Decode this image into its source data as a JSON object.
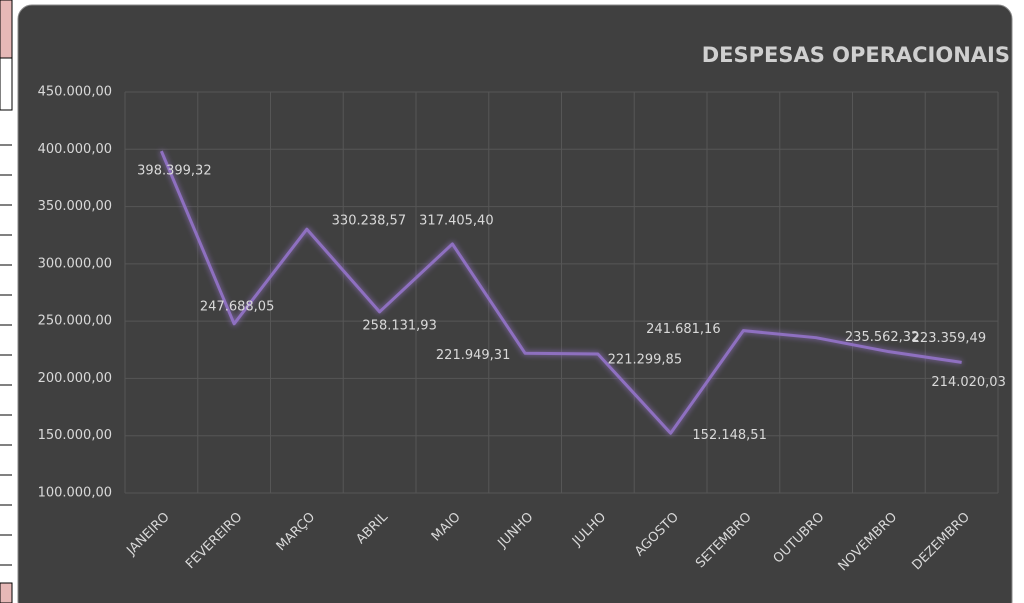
{
  "chart_data": {
    "type": "line",
    "title": "DESPESAS OPERACIONAIS",
    "categories": [
      "JANEIRO",
      "FEVEREIRO",
      "MARÇO",
      "ABRIL",
      "MAIO",
      "JUNHO",
      "JULHO",
      "AGOSTO",
      "SETEMBRO",
      "OUTUBRO",
      "NOVEMBRO",
      "DEZEMBRO"
    ],
    "series": [
      {
        "color": "#8e6fc0",
        "values": [
          398399.32,
          247688.05,
          330238.57,
          258131.93,
          317405.4,
          221949.31,
          221299.85,
          152148.51,
          241681.16,
          235562.32,
          223359.49,
          214020.03
        ],
        "value_labels": [
          "398.399,32",
          "247.688,05",
          "330.238,57",
          "258.131,93",
          "317.405,40",
          "221.949,31",
          "221.299,85",
          "152.148,51",
          "241.681,16",
          "235.562,32",
          "223.359,49",
          "214.020,03"
        ]
      }
    ],
    "ylim": [
      100000,
      450000
    ],
    "yticks": [
      {
        "value": 100000,
        "label": "100.000,00"
      },
      {
        "value": 150000,
        "label": "150.000,00"
      },
      {
        "value": 200000,
        "label": "200.000,00"
      },
      {
        "value": 250000,
        "label": "250.000,00"
      },
      {
        "value": 300000,
        "label": "300.000,00"
      },
      {
        "value": 350000,
        "label": "350.000,00"
      },
      {
        "value": 400000,
        "label": "400.000,00"
      },
      {
        "value": 450000,
        "label": "450.000,00"
      }
    ],
    "grid": true
  }
}
